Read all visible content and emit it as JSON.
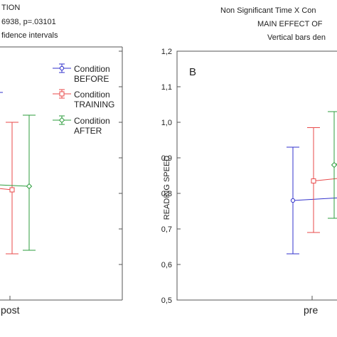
{
  "left_panel": {
    "header_lines": [
      "TION",
      "6938, p=.03101",
      "fidence intervals"
    ],
    "x_tick": "post"
  },
  "right_panel": {
    "header_lines": [
      "Non Significant Time X Con",
      "MAIN EFFECT OF",
      "Vertical bars den"
    ],
    "panel_label": "B",
    "x_tick": "pre"
  },
  "legend": [
    {
      "line1": "Condition",
      "line2": "BEFORE",
      "color": "#3333cc",
      "marker": "circle"
    },
    {
      "line1": "Condition",
      "line2": "TRAINING",
      "color": "#e84a4a",
      "marker": "square"
    },
    {
      "line1": "Condition",
      "line2": "AFTER",
      "color": "#2e9e3e",
      "marker": "diamond"
    }
  ],
  "chart_data": [
    {
      "type": "line",
      "title": "",
      "xlabel": "",
      "ylabel": "",
      "categories": [
        "post"
      ],
      "series": [
        {
          "name": "BEFORE",
          "color": "#3333cc",
          "values": [
            null
          ],
          "lower": [
            null
          ],
          "upper": [
            null
          ]
        },
        {
          "name": "TRAINING",
          "color": "#e84a4a",
          "values": [
            0.81
          ],
          "lower": [
            0.63
          ],
          "upper": [
            1.0
          ]
        },
        {
          "name": "AFTER",
          "color": "#2e9e3e",
          "values": [
            0.82
          ],
          "lower": [
            0.64
          ],
          "upper": [
            1.02
          ]
        }
      ],
      "ylim": [
        0.5,
        1.2
      ],
      "grid": false,
      "legend_position": "top-right"
    },
    {
      "type": "line",
      "title": "",
      "xlabel": "",
      "ylabel": "READING SPEED",
      "categories": [
        "pre"
      ],
      "y_ticks": [
        "0,5",
        "0,6",
        "0,7",
        "0,8",
        "0,9",
        "1,0",
        "1,1",
        "1,2"
      ],
      "series": [
        {
          "name": "BEFORE",
          "color": "#3333cc",
          "values": [
            0.78
          ],
          "lower": [
            0.63
          ],
          "upper": [
            0.93
          ]
        },
        {
          "name": "TRAINING",
          "color": "#e84a4a",
          "values": [
            0.835
          ],
          "lower": [
            0.69
          ],
          "upper": [
            0.985
          ]
        },
        {
          "name": "AFTER",
          "color": "#2e9e3e",
          "values": [
            0.88
          ],
          "lower": [
            0.73
          ],
          "upper": [
            1.03
          ]
        }
      ],
      "ylim": [
        0.5,
        1.2
      ],
      "grid": false
    }
  ]
}
